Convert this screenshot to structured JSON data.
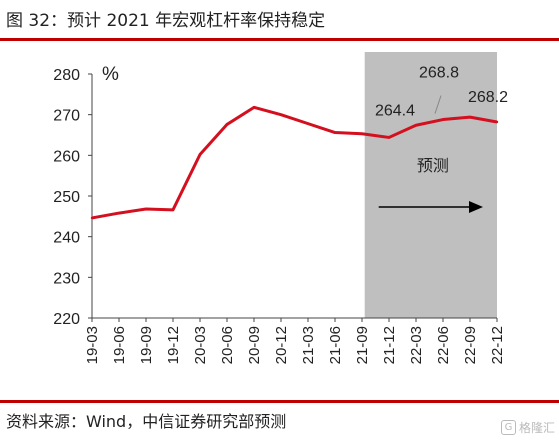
{
  "header": {
    "title": "图 32：预计 2021 年宏观杠杆率保持稳定"
  },
  "footer": {
    "source": "资料来源：Wind，中信证券研究部预测"
  },
  "watermark": {
    "text": "格隆汇",
    "icon": "G"
  },
  "colors": {
    "accent": "#c00000",
    "line": "#d40f1e",
    "forecast_bg": "#bfbfbf"
  },
  "chart_data": {
    "type": "line",
    "title": "",
    "xlabel": "",
    "ylabel": "%",
    "ylim": [
      220,
      280
    ],
    "yticks": [
      220,
      230,
      240,
      250,
      260,
      270,
      280
    ],
    "grid": false,
    "x": [
      "19-03",
      "19-06",
      "19-09",
      "19-12",
      "20-03",
      "20-06",
      "20-09",
      "20-12",
      "21-03",
      "21-06",
      "21-09",
      "21-12",
      "22-03",
      "22-06",
      "22-09",
      "22-12"
    ],
    "series": [
      {
        "values": [
          244.6,
          245.8,
          246.8,
          246.6,
          260.2,
          267.6,
          271.8,
          270.0,
          267.8,
          265.6,
          265.3,
          264.4,
          267.4,
          268.8,
          269.4,
          268.2
        ]
      }
    ],
    "forecast_region": {
      "from": "21-12",
      "to": "22-12",
      "label": "预测"
    },
    "annotations": [
      {
        "x": "21-12",
        "text": "264.4"
      },
      {
        "x": "22-06",
        "text": "268.8"
      },
      {
        "x": "22-12",
        "text": "268.2"
      }
    ]
  }
}
